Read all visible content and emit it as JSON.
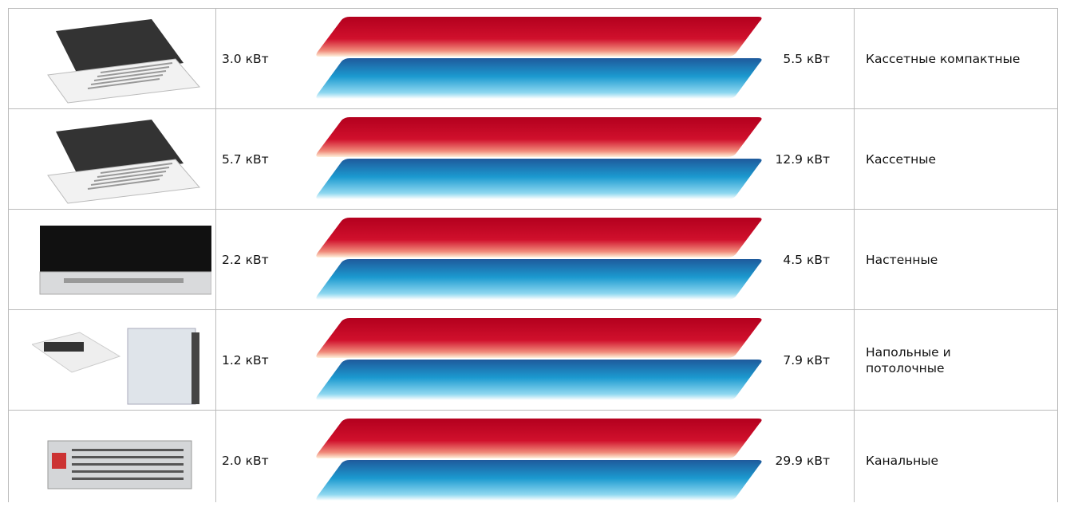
{
  "table": {
    "rows": [
      {
        "min": "3.0 кВт",
        "max": "5.5 кВт",
        "name": "Кассетные компактные"
      },
      {
        "min": "5.7 кВт",
        "max": "12.9 кВт",
        "name": "Кассетные"
      },
      {
        "min": "2.2 кВт",
        "max": "4.5 кВт",
        "name": "Настенные"
      },
      {
        "min": "1.2 кВт",
        "max": "7.9 кВт",
        "name": "Напольные и потолочные"
      },
      {
        "min": "2.0 кВт",
        "max": "29.9 кВт",
        "name": "Канальные"
      }
    ]
  }
}
